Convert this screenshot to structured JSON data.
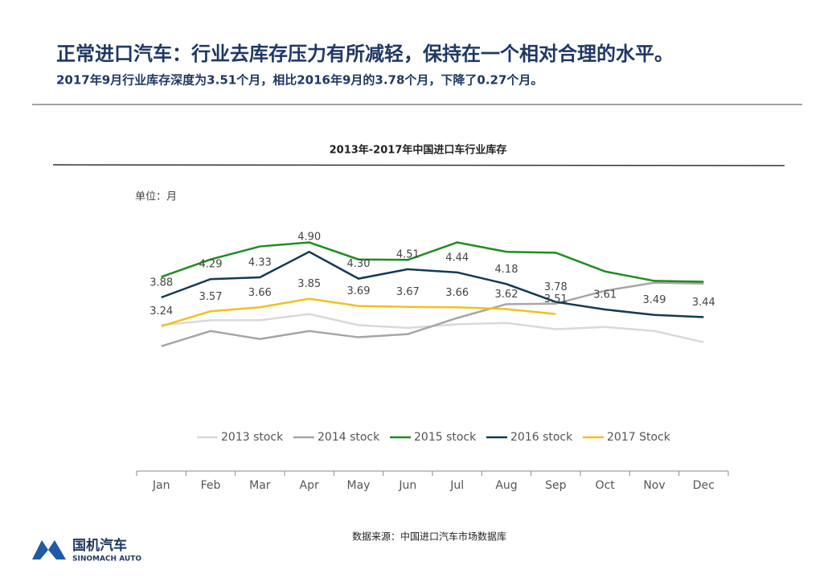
{
  "header": {
    "title": "正常进口汽车：行业去库存压力有所减轻，保持在一个相对合理的水平。",
    "subtitle": "2017年9月行业库存深度为3.51个月，相比2016年9月的3.78个月，下降了0.27个月。"
  },
  "chart_data": {
    "type": "line",
    "title": "2013年-2017年中国进口车行业库存",
    "unit_label": "单位：月",
    "categories": [
      "Jan",
      "Feb",
      "Mar",
      "Apr",
      "May",
      "Jun",
      "Jul",
      "Aug",
      "Sep",
      "Oct",
      "Nov",
      "Dec"
    ],
    "ylim": [
      0,
      6
    ],
    "series": [
      {
        "name": "2013 stock",
        "color": "#d9d9d9",
        "values": [
          3.26,
          3.37,
          3.37,
          3.51,
          3.26,
          3.2,
          3.28,
          3.31,
          3.17,
          3.22,
          3.13,
          2.88
        ]
      },
      {
        "name": "2014 stock",
        "color": "#a6a6a6",
        "values": [
          2.79,
          3.13,
          2.95,
          3.13,
          2.99,
          3.06,
          3.42,
          3.73,
          3.74,
          4.03,
          4.21,
          4.19
        ]
      },
      {
        "name": "2015 stock",
        "color": "#1e8c1e",
        "values": [
          4.34,
          4.73,
          5.02,
          5.11,
          4.73,
          4.72,
          5.11,
          4.9,
          4.88,
          4.46,
          4.25,
          4.23
        ]
      },
      {
        "name": "2016 stock",
        "color": "#123a55",
        "values": [
          3.88,
          4.29,
          4.33,
          4.9,
          4.3,
          4.51,
          4.44,
          4.18,
          3.78,
          3.61,
          3.49,
          3.44
        ],
        "value_labels": [
          "3.88",
          "4.29",
          "4.33",
          "4.90",
          "4.30",
          "4.51",
          "4.44",
          "4.18",
          "3.78",
          "3.61",
          "3.49",
          "3.44"
        ]
      },
      {
        "name": "2017 Stock",
        "color": "#f2c01e",
        "values": [
          3.24,
          3.57,
          3.66,
          3.85,
          3.69,
          3.67,
          3.66,
          3.62,
          3.51,
          null,
          null,
          null
        ],
        "value_labels": [
          "3.24",
          "3.57",
          "3.66",
          "3.85",
          "3.69",
          "3.67",
          "3.66",
          "3.62",
          "3.51",
          null,
          null,
          null
        ]
      }
    ]
  },
  "source": "数据来源：中国进口汽车市场数据库",
  "logo": {
    "name": "国机汽车",
    "english": "SINOMACH AUTO"
  }
}
